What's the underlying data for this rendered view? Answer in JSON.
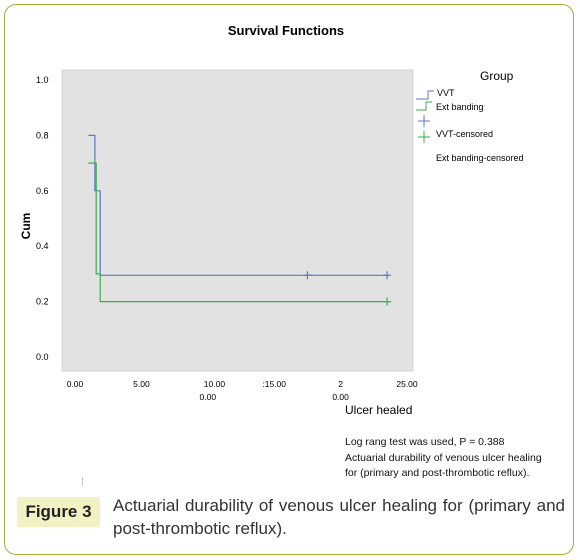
{
  "chart_data": {
    "type": "line",
    "subtype": "step (Kaplan-Meier survival)",
    "title": "Survival Functions",
    "xlabel": "Ulcer healed",
    "ylabel": "Cum",
    "xlim": [
      0,
      25
    ],
    "ylim": [
      0,
      1.1
    ],
    "y_ticks": [
      "0.0",
      "0.2",
      "0.4",
      "0.6",
      "0.8",
      "1.0"
    ],
    "x_tick_rows": [
      [
        {
          "x": 0,
          "label": "0.00"
        },
        {
          "x": 5,
          "label": "5.00"
        },
        {
          "x": 10.5,
          "label": "10.00"
        },
        {
          "x": 15,
          "label": ":15.00"
        },
        {
          "x": 20,
          "label": "2"
        },
        {
          "x": 25,
          "label": "25.00"
        }
      ],
      [
        {
          "x": 10,
          "label": "0.00"
        },
        {
          "x": 20,
          "label": "0.00"
        }
      ]
    ],
    "legend_title": "Group",
    "legend_position": "top-right",
    "series": [
      {
        "name": "VVT",
        "color": "#5b7bc6",
        "x": [
          1,
          1.5,
          1.5,
          1.9,
          1.9,
          23.5
        ],
        "y": [
          0.8,
          0.8,
          0.6,
          0.6,
          0.295,
          0.295
        ]
      },
      {
        "name": "Ext banding",
        "color": "#3aae48",
        "x": [
          1,
          1.6,
          1.6,
          1.9,
          1.9,
          23.5
        ],
        "y": [
          0.7,
          0.7,
          0.3,
          0.3,
          0.2,
          0.2
        ]
      }
    ],
    "censored": [
      {
        "name": "VVT-censored",
        "color": "#5b7bc6",
        "points": [
          [
            17.5,
            0.295
          ],
          [
            23.5,
            0.295
          ]
        ]
      },
      {
        "name": "Ext banding-censored",
        "color": "#3aae48",
        "points": [
          [
            23.5,
            0.2
          ]
        ]
      }
    ]
  },
  "legend": {
    "title": "Group",
    "items": [
      {
        "label": "VVT",
        "type": "line",
        "color": "#5b7bc6"
      },
      {
        "label": "Ext banding",
        "type": "line",
        "color": "#3aae48"
      },
      {
        "label": "VVT-censored",
        "type": "cross",
        "color": "#5b7bc6"
      },
      {
        "label": "Ext banding-censored",
        "type": "cross",
        "color": "#3aae48"
      }
    ]
  },
  "notes": {
    "line1": "Log rang test was used, P = 0.388",
    "line2": "Actuarial durability of venous ulcer healing",
    "line3": "for (primary and post-thrombotic reflux)."
  },
  "caption": {
    "label": "Figure 3",
    "text": "Actuarial durability of venous ulcer healing for (primary and post-thrombotic reflux)."
  }
}
